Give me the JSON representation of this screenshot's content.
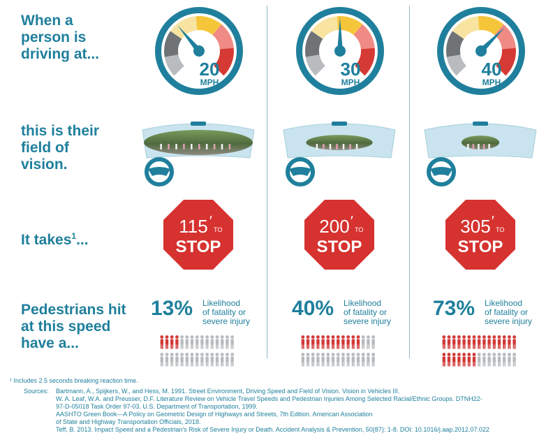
{
  "labels": {
    "row1": "When a\nperson is\ndriving at...",
    "row2": "this is their\nfield of\nvision.",
    "row3_main": "It takes",
    "row3_sup": "1",
    "row3_end": "...",
    "row4": "Pedestrians hit\nat this speed\nhave a..."
  },
  "columns": [
    {
      "speed": "20",
      "unit": "MPH",
      "needle": 20,
      "feet": "115",
      "to": "TO",
      "stop": "STOP",
      "fatality_pct": "13%",
      "fatality_fraction": 0.13,
      "window_fraction": 1.0
    },
    {
      "speed": "30",
      "unit": "MPH",
      "needle": 30,
      "feet": "200",
      "to": "TO",
      "stop": "STOP",
      "fatality_pct": "40%",
      "fatality_fraction": 0.4,
      "window_fraction": 0.6
    },
    {
      "speed": "40",
      "unit": "MPH",
      "needle": 40,
      "feet": "305",
      "to": "TO",
      "stop": "STOP",
      "fatality_pct": "73%",
      "fatality_fraction": 0.73,
      "window_fraction": 0.33
    }
  ],
  "likelihood_text": "Likelihood\nof fatality or\nsevere injury",
  "footnote": "¹ Includes 2.5 seconds breaking reaction time.",
  "sources_label": "Sources:",
  "sources": [
    "Bartmann, A., Spijkers, W., and Hess, M. 1991. Street Environment, Driving Speed and Field of Vision. Vision in Vehicles III.",
    "W. A. Leaf, W.A. and Preusser, D.F. Literature Review on Vehicle Travel Speeds and Pedestrian Injuries Among Selected Racial/Ethnic Groups. DTNH22-\n    97-D-05018 Task Order 97-03. U.S. Department of Transportation, 1999.",
    "AASHTO Green Book—A Policy on Geometric Design of Highways and Streets, 7th Edition. American Association\n    of State and Highway Transportation Officials, 2018.",
    "Teff, B. 2013. Impact Speed and a Pedestrian's Risk of Severe Injury or Death. Accident Analysis & Prevention, 50(87): 1-8. DOI: 10.1016/j.aap.2012.07.022"
  ],
  "colors": {
    "teal": "#1f7f9c",
    "gauge_gray": "#6f7376",
    "gauge_light": "#b8bcbf",
    "gauge_yellow": "#f6c63a",
    "gauge_pale": "#f8e3a0",
    "gauge_pink": "#ef8a84",
    "gauge_red": "#d63a35",
    "stop_red": "#d6322f",
    "person_red": "#d13a38",
    "person_gray": "#b7bbbe"
  }
}
